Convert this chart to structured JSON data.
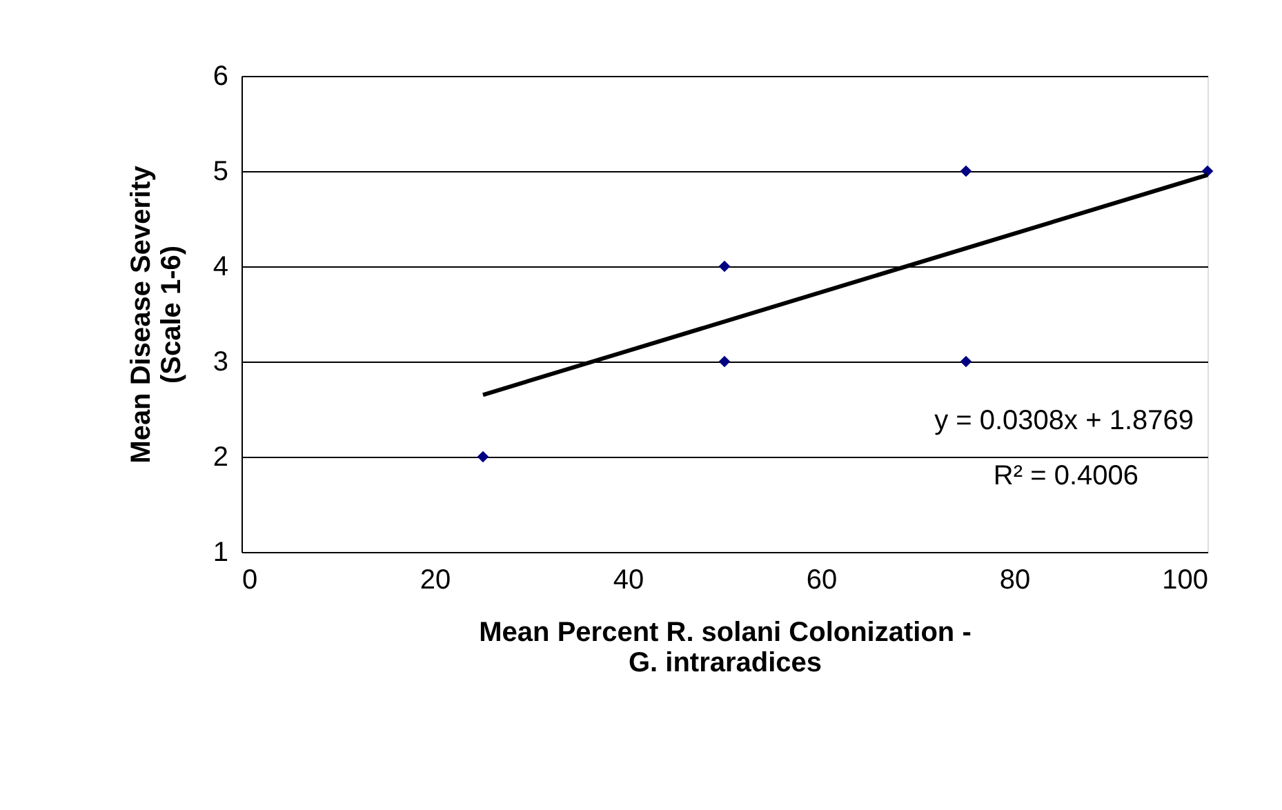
{
  "chart_data": {
    "type": "scatter",
    "xlabel": "Mean Percent R. solani Colonization -\nG. intraradices",
    "ylabel": "Mean Disease Severity\n(Scale 1-6)",
    "series": [
      {
        "color": "#000080",
        "marker": "diamond",
        "x": [
          25,
          50,
          50,
          75,
          75,
          100
        ],
        "values": [
          2,
          4,
          3,
          5,
          3,
          5
        ]
      },
      {
        "type": "line",
        "color": "#000000",
        "marker": "none",
        "line_style": "solid",
        "x": [
          25,
          100
        ],
        "values": [
          2.65,
          4.96
        ]
      }
    ],
    "xlim": [
      0,
      100
    ],
    "xticks": [
      0,
      20,
      40,
      60,
      80,
      100
    ],
    "ylim": [
      1,
      6
    ],
    "yticks": [
      1,
      2,
      3,
      4,
      5,
      6
    ],
    "grid": "y",
    "annotations": [
      "y = 0.0308x + 1.8769",
      "R² = 0.4006"
    ]
  }
}
